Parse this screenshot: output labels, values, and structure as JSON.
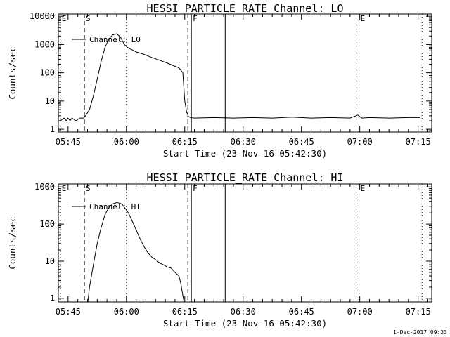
{
  "timestamp": "1-Dec-2017 09:33",
  "chart_data": [
    {
      "type": "line",
      "title": "HESSI PARTICLE_RATE Channel: LO",
      "xlabel": "Start Time (23-Nov-16 05:42:30)",
      "ylabel": "Counts/sec",
      "y_scale": "log",
      "ylim": [
        0.8,
        12000
      ],
      "xlim_minutes": [
        0,
        96
      ],
      "x_tick_labels": [
        "05:45",
        "06:00",
        "06:15",
        "06:30",
        "06:45",
        "07:00",
        "07:15"
      ],
      "x_tick_minutes": [
        2.5,
        17.5,
        32.5,
        47.5,
        62.5,
        77.5,
        92.5
      ],
      "y_tick_labels": [
        "1",
        "10",
        "100",
        "1000",
        "10000"
      ],
      "y_tick_values": [
        1,
        10,
        100,
        1000,
        10000
      ],
      "legend": {
        "label": "Channel: LO",
        "placement": "top-left"
      },
      "markers": [
        {
          "label": "E",
          "minute": 0.5,
          "style": "dotted"
        },
        {
          "label": "S",
          "minute": 6.7,
          "style": "dashed"
        },
        {
          "label": "",
          "minute": 17.5,
          "style": "dotted"
        },
        {
          "label": "",
          "minute": 33.3,
          "style": "dashed"
        },
        {
          "label": "F",
          "minute": 34.2,
          "style": "solid"
        },
        {
          "label": "",
          "minute": 42.9,
          "style": "solid"
        },
        {
          "label": "E",
          "minute": 77.3,
          "style": "dotted"
        },
        {
          "label": "",
          "minute": 93.5,
          "style": "dotted"
        }
      ],
      "series": [
        {
          "name": "Channel: LO",
          "x_minutes": [
            0.5,
            1.5,
            2.0,
            2.5,
            3.0,
            3.5,
            4.5,
            5.5,
            6.5,
            7.0,
            8.0,
            9.0,
            10.0,
            11.0,
            12.0,
            13.0,
            14.0,
            15.0,
            15.5,
            16.0,
            16.5,
            17.0,
            17.5,
            18.0,
            19.0,
            20.0,
            22.0,
            24.0,
            26.0,
            28.0,
            30.0,
            31.0,
            32.0,
            32.5,
            33.0,
            33.5,
            34.0,
            35.0,
            40.0,
            45.0,
            50.0,
            55.0,
            60.0,
            65.0,
            70.0,
            75.0,
            77.0,
            78.0,
            80.0,
            85.0,
            90.0,
            93.0
          ],
          "y": [
            2,
            2.5,
            2,
            2.5,
            2,
            2.5,
            2,
            2.5,
            2.5,
            3,
            5,
            15,
            60,
            250,
            800,
            1600,
            2200,
            2400,
            2100,
            1800,
            1300,
            1000,
            850,
            750,
            650,
            550,
            450,
            350,
            280,
            220,
            170,
            150,
            100,
            10,
            4,
            2.8,
            2.6,
            2.5,
            2.6,
            2.5,
            2.6,
            2.5,
            2.7,
            2.5,
            2.6,
            2.5,
            3.2,
            2.5,
            2.6,
            2.5,
            2.6,
            2.6
          ]
        }
      ]
    },
    {
      "type": "line",
      "title": "HESSI PARTICLE_RATE Channel: HI",
      "xlabel": "Start Time (23-Nov-16 05:42:30)",
      "ylabel": "Counts/sec",
      "y_scale": "log",
      "ylim": [
        0.8,
        1200
      ],
      "xlim_minutes": [
        0,
        96
      ],
      "x_tick_labels": [
        "05:45",
        "06:00",
        "06:15",
        "06:30",
        "06:45",
        "07:00",
        "07:15"
      ],
      "x_tick_minutes": [
        2.5,
        17.5,
        32.5,
        47.5,
        62.5,
        77.5,
        92.5
      ],
      "y_tick_labels": [
        "1",
        "10",
        "100",
        "1000"
      ],
      "y_tick_values": [
        1,
        10,
        100,
        1000
      ],
      "legend": {
        "label": "Channel: HI",
        "placement": "top-left"
      },
      "markers": [
        {
          "label": "E",
          "minute": 0.5,
          "style": "dotted"
        },
        {
          "label": "S",
          "minute": 6.7,
          "style": "dashed"
        },
        {
          "label": "",
          "minute": 17.5,
          "style": "dotted"
        },
        {
          "label": "",
          "minute": 33.3,
          "style": "dashed"
        },
        {
          "label": "F",
          "minute": 34.2,
          "style": "solid"
        },
        {
          "label": "",
          "minute": 42.9,
          "style": "solid"
        },
        {
          "label": "E",
          "minute": 77.3,
          "style": "dotted"
        },
        {
          "label": "",
          "minute": 93.5,
          "style": "dotted"
        }
      ],
      "series": [
        {
          "name": "Channel: HI",
          "x_minutes": [
            7.6,
            8.0,
            9.0,
            10.0,
            11.0,
            12.0,
            13.0,
            14.0,
            15.0,
            16.0,
            16.5,
            17.0,
            18.0,
            19.0,
            20.0,
            21.0,
            22.0,
            23.0,
            24.0,
            25.0,
            26.0,
            27.0,
            28.0,
            29.0,
            30.0,
            31.0,
            31.5,
            32.0,
            32.3
          ],
          "y": [
            0.8,
            2,
            8,
            30,
            80,
            180,
            280,
            350,
            380,
            360,
            330,
            280,
            200,
            120,
            70,
            40,
            25,
            17,
            13,
            11,
            9,
            8,
            7,
            6.5,
            5,
            4,
            2.5,
            1.2,
            0.8
          ]
        }
      ]
    }
  ]
}
